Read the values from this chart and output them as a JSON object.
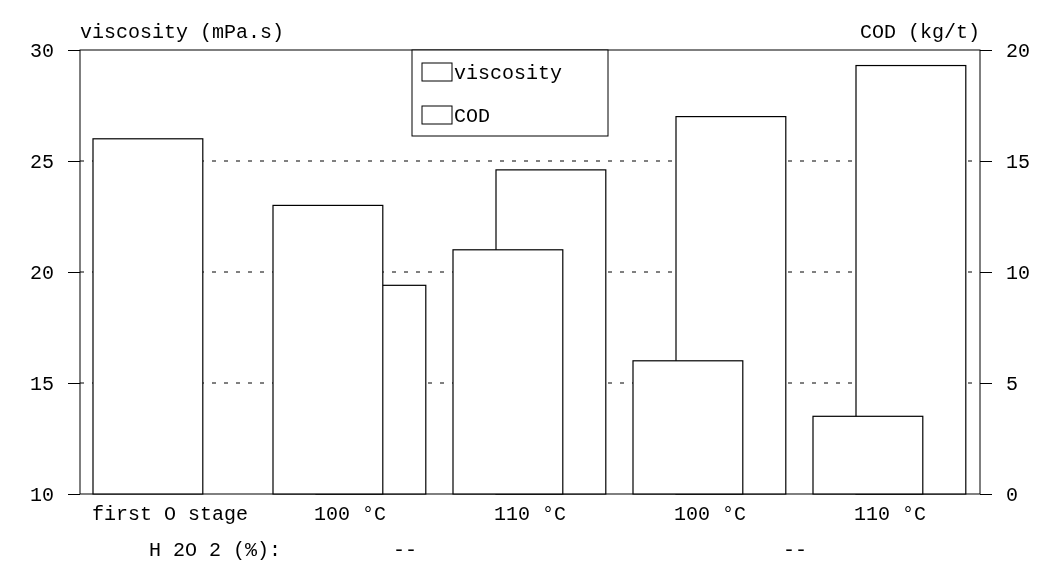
{
  "chart_data": {
    "type": "bar",
    "ylabel": "viscosity (mPa.s)",
    "y2label": "COD (kg/t)",
    "categories": [
      "first O stage",
      "100 °C",
      "110 °C",
      "100 °C",
      "110 °C"
    ],
    "series": [
      {
        "name": "viscosity",
        "color": "#ffffff",
        "values": [
          26,
          23,
          21,
          16,
          13.5
        ]
      },
      {
        "name": "COD",
        "color": "#ffffff",
        "axis": "y2",
        "values": [
          null,
          9.4,
          14.6,
          17,
          19.3
        ]
      }
    ],
    "ylim": [
      10,
      30
    ],
    "yticks": [
      10,
      15,
      20,
      25,
      30
    ],
    "y2lim": [
      0,
      20
    ],
    "y2ticks": [
      0,
      5,
      10,
      15,
      20
    ],
    "grid": "y",
    "legend": "top",
    "annotations": [
      "H 2O 2 (%):",
      "--",
      "--"
    ]
  }
}
